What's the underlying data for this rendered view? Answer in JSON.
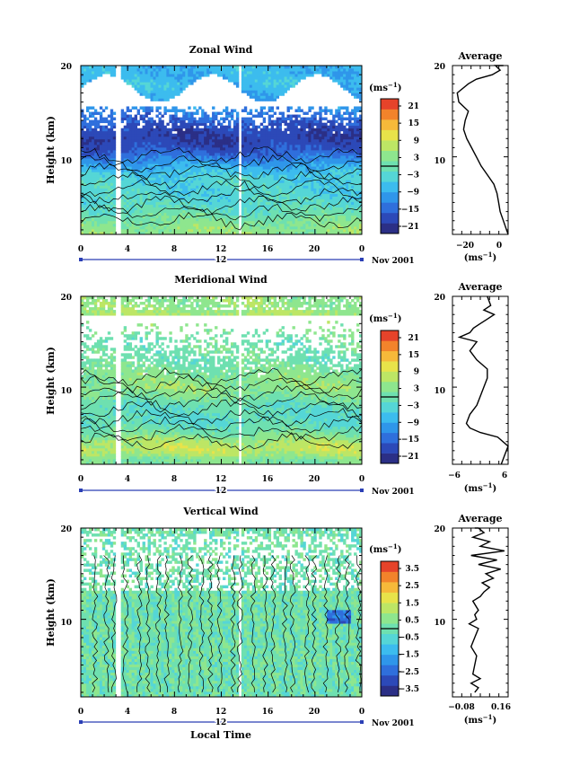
{
  "panels": [
    {
      "title": "Zonal Wind",
      "ylabel": "Height (km)",
      "yticks": [
        "20",
        "10"
      ],
      "xticks": [
        "0",
        "4",
        "8",
        "12",
        "16",
        "20",
        "0"
      ],
      "date_label": "12",
      "month_label": "Nov 2001",
      "colorbar": {
        "unit": "(ms",
        "unit_exp": "−1",
        "unit_close": ")",
        "labels": [
          "21",
          "15",
          "9",
          "3",
          "−3",
          "−9",
          "−15",
          "−21"
        ]
      },
      "avg_title": "Average",
      "avg_yticks": [
        "20",
        "10"
      ],
      "avg_xticks": [
        "−20",
        "0"
      ],
      "avg_unit": "(ms",
      "avg_unit_exp": "−1",
      "avg_unit_close": ")"
    },
    {
      "title": "Meridional Wind",
      "ylabel": "Height (km)",
      "yticks": [
        "20",
        "10"
      ],
      "xticks": [
        "0",
        "4",
        "8",
        "12",
        "16",
        "20",
        "0"
      ],
      "date_label": "12",
      "month_label": "Nov 2001",
      "colorbar": {
        "unit": "(ms",
        "unit_exp": "−1",
        "unit_close": ")",
        "labels": [
          "21",
          "15",
          "9",
          "3",
          "−3",
          "−9",
          "−15",
          "−21"
        ]
      },
      "avg_title": "Average",
      "avg_yticks": [
        "20",
        "10"
      ],
      "avg_xticks": [
        "−6",
        "6"
      ],
      "avg_unit": "(ms",
      "avg_unit_exp": "−1",
      "avg_unit_close": ")"
    },
    {
      "title": "Vertical Wind",
      "ylabel": "Height (km)",
      "yticks": [
        "20",
        "10"
      ],
      "xticks": [
        "0",
        "4",
        "8",
        "12",
        "16",
        "20",
        "0"
      ],
      "date_label": "12",
      "month_label": "Nov 2001",
      "xlabel": "Local Time",
      "colorbar": {
        "unit": "(ms",
        "unit_exp": "−1",
        "unit_close": ")",
        "labels": [
          "3.5",
          "2.5",
          "1.5",
          "0.5",
          "−0.5",
          "−1.5",
          "−2.5",
          "−3.5"
        ]
      },
      "avg_title": "Average",
      "avg_yticks": [
        "20",
        "10"
      ],
      "avg_xticks": [
        "−0.08",
        "0.16"
      ],
      "avg_unit": "(ms",
      "avg_unit_exp": "−1",
      "avg_unit_close": ")"
    }
  ],
  "colormap": [
    "#2b2f86",
    "#2c49b8",
    "#2f6fdc",
    "#2f96ea",
    "#3cbcee",
    "#55d6d6",
    "#6ee0b0",
    "#8ee68e",
    "#bde665",
    "#e8e34a",
    "#f6b93a",
    "#f2832b",
    "#e6432a"
  ],
  "chart_data": [
    {
      "type": "heatmap",
      "title": "Zonal Wind",
      "xlabel": "",
      "ylabel": "Height (km)",
      "xlim": [
        0,
        24
      ],
      "ylim": [
        1.5,
        20
      ],
      "colorbar_range": [
        -24,
        24
      ],
      "time_gaps": [
        3.2,
        13.6
      ],
      "height_profile": [
        [
          2,
          4
        ],
        [
          3,
          2
        ],
        [
          4,
          -1
        ],
        [
          5,
          -3
        ],
        [
          6,
          -4
        ],
        [
          7,
          -4
        ],
        [
          8,
          -5
        ],
        [
          9,
          -9
        ],
        [
          10,
          -14
        ],
        [
          11,
          -18
        ],
        [
          12,
          -20
        ],
        [
          13,
          -19
        ],
        [
          14,
          -16
        ],
        [
          15,
          -13
        ],
        [
          16,
          -10
        ],
        [
          17,
          -9
        ],
        [
          18,
          -7
        ],
        [
          19,
          -8
        ]
      ],
      "average_profile": {
        "x": [
          5,
          4,
          2,
          0,
          -1,
          -2,
          -4,
          -8,
          -12,
          -15,
          -18,
          -21,
          -23,
          -22,
          -20,
          -26,
          -27,
          -20,
          -15,
          -5,
          0,
          -3,
          2
        ],
        "y": [
          1.5,
          2,
          3,
          4,
          5,
          6,
          7,
          8,
          9,
          10,
          11,
          12,
          13,
          14,
          15,
          16,
          17,
          18,
          18.5,
          19,
          19.5,
          20,
          20
        ],
        "xlim": [
          -30,
          5
        ]
      }
    },
    {
      "type": "heatmap",
      "title": "Meridional Wind",
      "xlabel": "",
      "ylabel": "Height (km)",
      "xlim": [
        0,
        24
      ],
      "ylim": [
        1.5,
        20
      ],
      "colorbar_range": [
        -24,
        24
      ],
      "time_gaps": [
        3.2,
        13.6
      ],
      "height_profile": [
        [
          2,
          2
        ],
        [
          3,
          8
        ],
        [
          4,
          6
        ],
        [
          5,
          1
        ],
        [
          6,
          -2
        ],
        [
          7,
          -2
        ],
        [
          8,
          -1
        ],
        [
          9,
          2
        ],
        [
          10,
          4
        ],
        [
          11,
          3
        ],
        [
          12,
          2
        ],
        [
          13,
          0
        ],
        [
          14,
          1
        ],
        [
          15,
          0
        ],
        [
          16,
          2
        ],
        [
          17,
          3
        ],
        [
          18,
          6
        ],
        [
          19,
          4
        ]
      ],
      "average_profile": {
        "x": [
          6,
          7,
          8,
          5,
          0,
          -3,
          -4,
          -3,
          -1,
          0,
          1,
          2,
          2,
          -1,
          -3,
          -1,
          -6,
          -3,
          -2,
          0,
          2,
          4,
          1,
          3,
          2
        ],
        "y": [
          1.5,
          2.5,
          3.5,
          4.5,
          5,
          5.5,
          6,
          7,
          8,
          9,
          10,
          11,
          12,
          13,
          14,
          15,
          15.5,
          16,
          16.5,
          17,
          17.5,
          18,
          18.5,
          19,
          20
        ],
        "xlim": [
          -8,
          8
        ]
      }
    },
    {
      "type": "heatmap",
      "title": "Vertical Wind",
      "xlabel": "Local Time",
      "ylabel": "Height (km)",
      "xlim": [
        0,
        24
      ],
      "ylim": [
        1.5,
        20
      ],
      "colorbar_range": [
        -4,
        4
      ],
      "time_gaps": [
        3.2,
        13.6
      ],
      "height_profile": [
        [
          2,
          0
        ],
        [
          3,
          0
        ],
        [
          4,
          0
        ],
        [
          5,
          0
        ],
        [
          6,
          0
        ],
        [
          7,
          0
        ],
        [
          8,
          0
        ],
        [
          9,
          -0.5
        ],
        [
          10,
          0
        ],
        [
          11,
          0
        ],
        [
          12,
          0
        ],
        [
          13,
          0
        ],
        [
          14,
          0.5
        ],
        [
          15,
          0
        ],
        [
          16,
          0
        ],
        [
          17,
          0
        ],
        [
          18,
          0
        ],
        [
          19,
          0
        ]
      ],
      "average_profile": {
        "x": [
          0,
          0.02,
          -0.02,
          0.03,
          -0.01,
          0,
          0.01,
          -0.02,
          0,
          0.02,
          -0.03,
          0.01,
          0,
          0.02,
          -0.01,
          0.03,
          0.05,
          0.08,
          0.04,
          0.1,
          0.06,
          0.14,
          0.02,
          0.12,
          -0.02,
          0.16,
          0.03,
          0.08,
          -0.01,
          0.05,
          0.02,
          0
        ],
        "y": [
          2,
          2.5,
          3,
          3.5,
          4,
          5,
          6,
          7,
          8,
          9,
          9.5,
          10,
          10.5,
          11,
          12,
          12.5,
          13,
          13.5,
          14,
          14.5,
          15,
          15.5,
          16,
          16.5,
          17,
          17.5,
          18,
          18.5,
          19,
          19.5,
          20,
          20
        ],
        "xlim": [
          -0.12,
          0.18
        ]
      }
    }
  ]
}
